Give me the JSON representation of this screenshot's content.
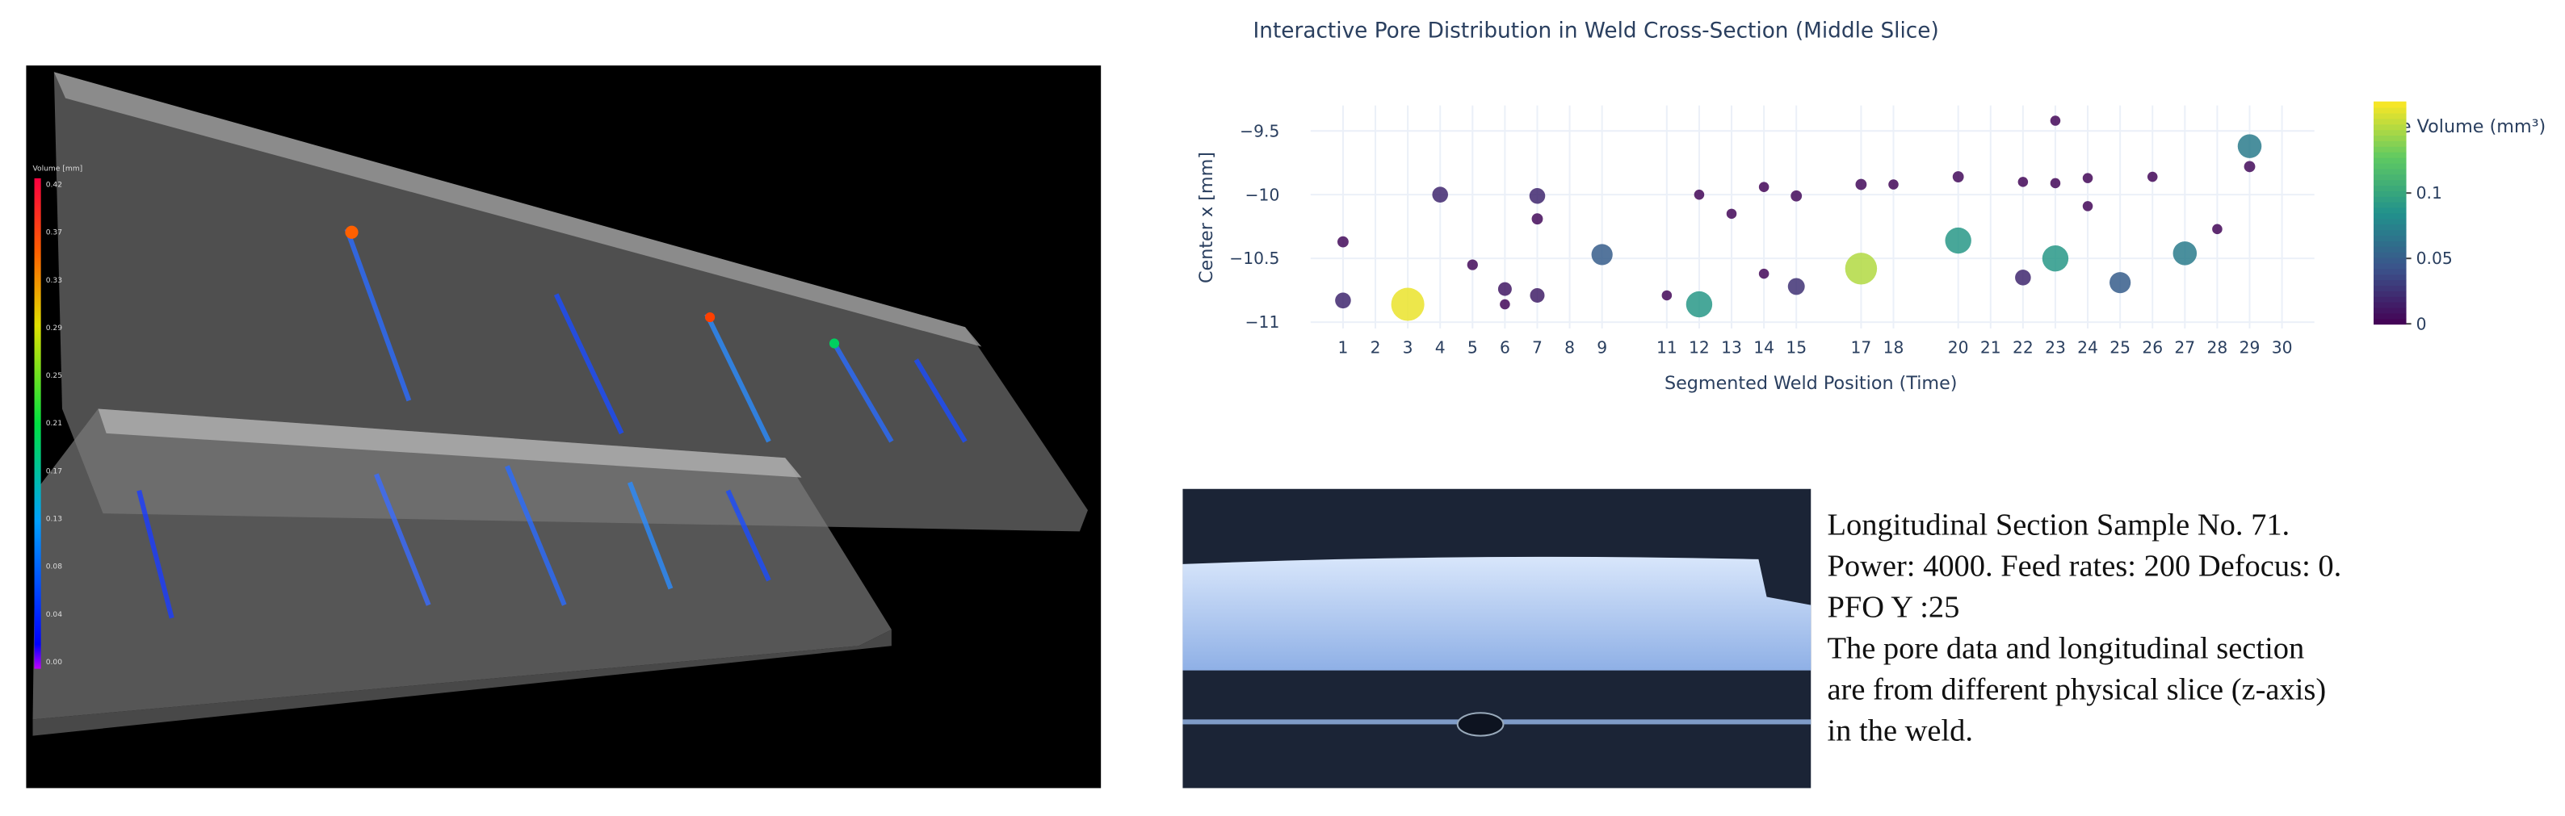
{
  "render_colorbar": {
    "title": "Volume [mm]",
    "labels": [
      "0.42",
      "0.37",
      "0.33",
      "0.29",
      "0.25",
      "0.21",
      "0.17",
      "0.13",
      "0.08",
      "0.04",
      "0.00"
    ]
  },
  "chart_data": {
    "type": "scatter",
    "title": "Interactive Pore Distribution in Weld Cross-Section (Middle Slice)",
    "x_label": "Segmented Weld Position (Time)",
    "y_label": "Center x [mm]",
    "x": [
      1,
      1,
      3,
      4,
      5,
      6,
      6,
      7,
      7,
      7,
      9,
      11,
      12,
      12,
      13,
      14,
      14,
      15,
      15,
      17,
      17,
      18,
      20,
      20,
      22,
      22,
      23,
      23,
      23,
      24,
      24,
      25,
      26,
      27,
      28,
      29,
      29
    ],
    "values": [
      -10.37,
      -10.83,
      -10.86,
      -10.0,
      -10.55,
      -10.74,
      -10.86,
      -10.01,
      -10.19,
      -10.79,
      -10.47,
      -10.79,
      -10.86,
      -10.0,
      -10.15,
      -9.94,
      -10.62,
      -10.01,
      -10.72,
      -9.92,
      -10.58,
      -9.92,
      -9.86,
      -10.36,
      -9.9,
      -10.65,
      -9.42,
      -9.91,
      -10.5,
      -9.87,
      -10.09,
      -10.69,
      -9.86,
      -10.46,
      -10.27,
      -9.62,
      -9.78
    ],
    "marker_volume": [
      0.005,
      0.02,
      0.165,
      0.02,
      0.004,
      0.012,
      0.003,
      0.02,
      0.005,
      0.015,
      0.05,
      0.003,
      0.09,
      0.003,
      0.003,
      0.003,
      0.003,
      0.005,
      0.025,
      0.005,
      0.15,
      0.003,
      0.005,
      0.09,
      0.003,
      0.02,
      0.003,
      0.003,
      0.09,
      0.003,
      0.003,
      0.05,
      0.003,
      0.07,
      0.003,
      0.07,
      0.005
    ],
    "xlim": [
      0,
      31
    ],
    "xticks": [
      1,
      2,
      3,
      4,
      5,
      6,
      7,
      8,
      9,
      11,
      12,
      13,
      14,
      15,
      17,
      18,
      20,
      21,
      22,
      23,
      24,
      25,
      26,
      27,
      28,
      29,
      30
    ],
    "ylim": [
      -11.05,
      -9.3
    ],
    "yticks": [
      {
        "value": -9.5,
        "label": "−9.5"
      },
      {
        "value": -10,
        "label": "−10"
      },
      {
        "value": -10.5,
        "label": "−10.5"
      },
      {
        "value": -11,
        "label": "−11"
      }
    ],
    "grid": true,
    "colorbar": {
      "title": "Pore Volume (mm³)",
      "lim": [
        0,
        0.17
      ],
      "ticks": [
        0,
        0.05,
        0.1
      ],
      "colorscale": "viridis"
    }
  },
  "description": {
    "lines": [
      "Longitudinal Section Sample No. 71.",
      "Power: 4000. Feed rates: 200 Defocus: 0.",
      "PFO Y :25",
      "The pore data and longitudinal section",
      "are from different physical slice (z-axis)",
      "in the weld."
    ]
  }
}
